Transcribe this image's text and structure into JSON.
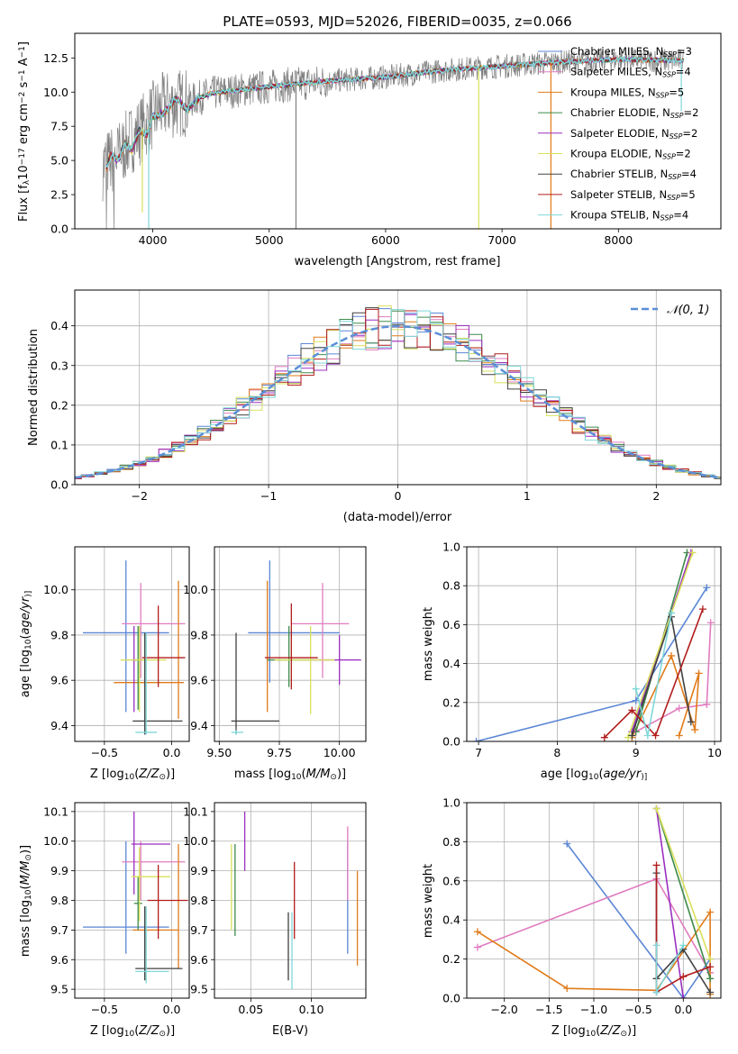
{
  "figure": {
    "title": "PLATE=0593, MJD=52026, FIBERID=0035, z=0.066"
  },
  "colors": {
    "Chabrier MILES": "#5b86d6",
    "Salpeter MILES": "#e07cbf",
    "Kroupa MILES": "#e07b1a",
    "Chabrier ELODIE": "#3e8a4a",
    "Salpeter ELODIE": "#9a2fc0",
    "Kroupa ELODIE": "#d8e05a",
    "Chabrier STELIB": "#404040",
    "Salpeter STELIB": "#b21c1c",
    "Kroupa STELIB": "#7fd7d9",
    "data": "#7f7f7f"
  },
  "chart_data": [
    {
      "id": "spectrum",
      "type": "line",
      "title": "PLATE=0593, MJD=52026, FIBERID=0035, z=0.066",
      "xlabel": "wavelength [Angstrom, rest frame]",
      "ylabel_parts": [
        "Flux [f",
        "λ",
        "10",
        "−17",
        " erg cm",
        "−2",
        " s",
        "−1",
        " A",
        "−1",
        "]"
      ],
      "xlim": [
        3330,
        8880
      ],
      "ylim": [
        0,
        14.3
      ],
      "xticks": [
        4000,
        5000,
        6000,
        7000,
        8000
      ],
      "yticks": [
        0.0,
        2.5,
        5.0,
        7.5,
        10.0,
        12.5
      ],
      "legend_position": "right",
      "legend": [
        {
          "name": "Chabrier MILES",
          "nssp": "3"
        },
        {
          "name": "Salpeter MILES",
          "nssp": "4"
        },
        {
          "name": "Kroupa MILES",
          "nssp": "5"
        },
        {
          "name": "Chabrier ELODIE",
          "nssp": "2"
        },
        {
          "name": "Salpeter ELODIE",
          "nssp": "2"
        },
        {
          "name": "Kroupa ELODIE",
          "nssp": "2"
        },
        {
          "name": "Chabrier STELIB",
          "nssp": "4"
        },
        {
          "name": "Salpeter STELIB",
          "nssp": "5"
        },
        {
          "name": "Kroupa STELIB",
          "nssp": "4"
        }
      ],
      "continuum": [
        [
          3580,
          4.6
        ],
        [
          3700,
          5.3
        ],
        [
          3800,
          6.4
        ],
        [
          3900,
          7.3
        ],
        [
          4000,
          8.3
        ],
        [
          4100,
          9.0
        ],
        [
          4300,
          9.3
        ],
        [
          4500,
          9.9
        ],
        [
          5000,
          10.4
        ],
        [
          5500,
          10.8
        ],
        [
          6000,
          11.1
        ],
        [
          6500,
          11.6
        ],
        [
          7000,
          11.9
        ],
        [
          7500,
          12.2
        ],
        [
          8000,
          12.4
        ],
        [
          8500,
          12.3
        ]
      ],
      "model_start": [
        [
          3600,
          4.4
        ],
        [
          3640,
          5.4
        ],
        [
          3700,
          5.0
        ],
        [
          3760,
          6.2
        ],
        [
          3820,
          5.7
        ],
        [
          3880,
          7.2
        ],
        [
          3950,
          6.9
        ],
        [
          4000,
          8.2
        ],
        [
          4100,
          8.5
        ],
        [
          4200,
          9.5
        ],
        [
          4300,
          8.7
        ],
        [
          4400,
          9.6
        ]
      ],
      "dips": [
        {
          "x": 3910,
          "y": 1.2,
          "color": "Kroupa ELODIE"
        },
        {
          "x": 3965,
          "y": 0.0,
          "color": "Kroupa STELIB"
        },
        {
          "x": 5230,
          "y": 0.0,
          "color": "data"
        },
        {
          "x": 6800,
          "y": 0.0,
          "color": "Kroupa ELODIE"
        },
        {
          "x": 7420,
          "y": 0.0,
          "color": "Kroupa MILES"
        },
        {
          "x": 8540,
          "y": 8.6,
          "color": "Kroupa STELIB"
        }
      ]
    },
    {
      "id": "residuals",
      "type": "step-histogram",
      "xlabel": "(data-model)/error",
      "ylabel": "Normed distribution",
      "xlim": [
        -2.5,
        2.5
      ],
      "ylim": [
        0,
        0.49
      ],
      "xticks": [
        -2,
        -1,
        0,
        1,
        2
      ],
      "yticks": [
        0.0,
        0.1,
        0.2,
        0.3,
        0.4
      ],
      "bin_width": 0.1,
      "reference_curve": "N(0,1)",
      "legend_position": "top-right",
      "legend": [
        "𝒩(0, 1)"
      ],
      "series_order": [
        "Chabrier MILES",
        "Salpeter MILES",
        "Kroupa MILES",
        "Chabrier ELODIE",
        "Salpeter ELODIE",
        "Kroupa ELODIE",
        "Chabrier STELIB",
        "Salpeter STELIB",
        "Kroupa STELIB"
      ]
    },
    {
      "id": "age-vs-Z",
      "type": "errorbar",
      "xlabel_parts": [
        "Z [log",
        "10",
        "(",
        "Z/Z",
        "⊙",
        ")]"
      ],
      "ylabel_parts": [
        "age  [log",
        "10",
        "(",
        "age/yr",
        ")]"
      ],
      "xlim": [
        -0.72,
        0.13
      ],
      "ylim": [
        9.33,
        10.19
      ],
      "xticks": [
        -0.5,
        0.0
      ],
      "yticks": [
        9.4,
        9.6,
        9.8,
        10.0
      ],
      "points": [
        {
          "model": "Chabrier MILES",
          "x": -0.34,
          "y": 9.81,
          "xlo": -0.66,
          "xhi": -0.02,
          "ylo": 9.46,
          "yhi": 10.13
        },
        {
          "model": "Salpeter MILES",
          "x": -0.23,
          "y": 9.85,
          "xlo": -0.37,
          "xhi": 0.1,
          "ylo": 9.61,
          "yhi": 10.03
        },
        {
          "model": "Kroupa MILES",
          "x": 0.05,
          "y": 9.59,
          "xlo": -0.43,
          "xhi": 0.09,
          "ylo": 9.43,
          "yhi": 10.04
        },
        {
          "model": "Chabrier ELODIE",
          "x": -0.25,
          "y": 9.69,
          "xlo": -0.29,
          "xhi": -0.21,
          "ylo": 9.47,
          "yhi": 9.84
        },
        {
          "model": "Salpeter ELODIE",
          "x": -0.28,
          "y": 9.69,
          "xlo": -0.3,
          "xhi": -0.26,
          "ylo": 9.46,
          "yhi": 9.84
        },
        {
          "model": "Kroupa ELODIE",
          "x": -0.24,
          "y": 9.69,
          "xlo": -0.38,
          "xhi": -0.04,
          "ylo": 9.46,
          "yhi": 9.84
        },
        {
          "model": "Chabrier STELIB",
          "x": -0.2,
          "y": 9.42,
          "xlo": -0.29,
          "xhi": 0.08,
          "ylo": 9.36,
          "yhi": 9.81
        },
        {
          "model": "Salpeter STELIB",
          "x": -0.1,
          "y": 9.7,
          "xlo": -0.22,
          "xhi": 0.1,
          "ylo": 9.57,
          "yhi": 9.93
        },
        {
          "model": "Kroupa STELIB",
          "x": -0.19,
          "y": 9.37,
          "xlo": -0.27,
          "xhi": -0.11,
          "ylo": 9.36,
          "yhi": 9.81
        }
      ]
    },
    {
      "id": "age-vs-mass",
      "type": "errorbar",
      "xlabel_parts": [
        "mass [log",
        "10",
        "(",
        "M/M",
        "⊙",
        ")]"
      ],
      "xlim": [
        9.48,
        10.11
      ],
      "ylim": [
        9.33,
        10.19
      ],
      "xticks": [
        9.5,
        9.75,
        10.0
      ],
      "yticks": [
        9.4,
        9.6,
        9.8,
        10.0
      ],
      "points": [
        {
          "model": "Chabrier MILES",
          "x": 9.71,
          "y": 9.81,
          "xlo": 9.62,
          "xhi": 10.0,
          "ylo": 9.59,
          "yhi": 10.13
        },
        {
          "model": "Salpeter MILES",
          "x": 9.93,
          "y": 9.85,
          "xlo": 9.8,
          "xhi": 10.04,
          "ylo": 9.61,
          "yhi": 10.03
        },
        {
          "model": "Kroupa MILES",
          "x": 9.7,
          "y": 9.59,
          "xlo": 9.7,
          "xhi": 9.7,
          "ylo": 9.46,
          "yhi": 10.04
        },
        {
          "model": "Chabrier ELODIE",
          "x": 9.79,
          "y": 9.69,
          "xlo": 9.7,
          "xhi": 9.88,
          "ylo": 9.57,
          "yhi": 9.84
        },
        {
          "model": "Salpeter ELODIE",
          "x": 10.0,
          "y": 9.69,
          "xlo": 9.88,
          "xhi": 10.09,
          "ylo": 9.58,
          "yhi": 9.8
        },
        {
          "model": "Kroupa ELODIE",
          "x": 9.88,
          "y": 9.69,
          "xlo": 9.73,
          "xhi": 9.98,
          "ylo": 9.45,
          "yhi": 9.84
        },
        {
          "model": "Chabrier STELIB",
          "x": 9.57,
          "y": 9.42,
          "xlo": 9.55,
          "xhi": 9.75,
          "ylo": 9.36,
          "yhi": 9.81
        },
        {
          "model": "Salpeter STELIB",
          "x": 9.8,
          "y": 9.7,
          "xlo": 9.69,
          "xhi": 9.91,
          "ylo": 9.56,
          "yhi": 9.94
        },
        {
          "model": "Kroupa STELIB",
          "x": 9.57,
          "y": 9.37,
          "xlo": 9.55,
          "xhi": 9.6,
          "ylo": 9.36,
          "yhi": 9.38
        }
      ]
    },
    {
      "id": "mass-weight-vs-age",
      "type": "line",
      "xlabel_parts": [
        "age  [log",
        "10",
        "(",
        "age/yr",
        ")]"
      ],
      "ylabel": "mass weight",
      "xlim": [
        6.85,
        10.08
      ],
      "ylim": [
        0,
        1.0
      ],
      "xticks": [
        7,
        8,
        9,
        10
      ],
      "yticks": [
        0.0,
        0.2,
        0.4,
        0.6,
        0.8,
        1.0
      ],
      "series": [
        {
          "model": "Chabrier MILES",
          "x": [
            6.97,
            9.0,
            9.9
          ],
          "y": [
            0.0,
            0.21,
            0.79
          ]
        },
        {
          "model": "Salpeter MILES",
          "x": [
            9.0,
            9.55,
            9.9,
            9.95
          ],
          "y": [
            0.05,
            0.17,
            0.19,
            0.61
          ]
        },
        {
          "model": "Kroupa MILES",
          "x": [
            8.95,
            9.45,
            9.75,
            9.8,
            9.55
          ],
          "y": [
            0.02,
            0.44,
            0.06,
            0.35,
            0.03
          ]
        },
        {
          "model": "Chabrier ELODIE",
          "x": [
            9.0,
            9.65
          ],
          "y": [
            0.05,
            0.97
          ]
        },
        {
          "model": "Salpeter ELODIE",
          "x": [
            8.95,
            9.7
          ],
          "y": [
            0.05,
            0.97
          ]
        },
        {
          "model": "Kroupa ELODIE",
          "x": [
            8.9,
            9.72
          ],
          "y": [
            0.02,
            0.97
          ]
        },
        {
          "model": "Chabrier STELIB",
          "x": [
            8.95,
            9.45,
            9.7
          ],
          "y": [
            0.03,
            0.64,
            0.1
          ]
        },
        {
          "model": "Salpeter STELIB",
          "x": [
            8.6,
            8.95,
            9.25,
            9.85
          ],
          "y": [
            0.02,
            0.16,
            0.03,
            0.68
          ]
        },
        {
          "model": "Kroupa STELIB",
          "x": [
            9.0,
            9.15,
            9.45
          ],
          "y": [
            0.27,
            0.03,
            0.66
          ]
        }
      ]
    },
    {
      "id": "mass-vs-Z",
      "type": "errorbar",
      "xlabel_parts": [
        "Z [log",
        "10",
        "(",
        "Z/Z",
        "⊙",
        ")]"
      ],
      "ylabel_parts": [
        "mass [log",
        "10",
        "(",
        "M/M",
        "⊙",
        ")]"
      ],
      "xlim": [
        -0.72,
        0.13
      ],
      "ylim": [
        9.47,
        10.13
      ],
      "xticks": [
        -0.5,
        0.0
      ],
      "yticks": [
        9.5,
        9.6,
        9.7,
        9.8,
        9.9,
        10.0,
        10.1
      ],
      "points": [
        {
          "model": "Chabrier MILES",
          "x": -0.34,
          "y": 9.71,
          "xlo": -0.66,
          "xhi": -0.02,
          "ylo": 9.62,
          "yhi": 10.0
        },
        {
          "model": "Salpeter MILES",
          "x": -0.23,
          "y": 9.93,
          "xlo": -0.37,
          "xhi": 0.1,
          "ylo": 9.8,
          "yhi": 10.0
        },
        {
          "model": "Kroupa MILES",
          "x": 0.05,
          "y": 9.7,
          "xlo": -0.29,
          "xhi": 0.05,
          "ylo": 9.57,
          "yhi": 9.99
        },
        {
          "model": "Chabrier ELODIE",
          "x": -0.25,
          "y": 9.79,
          "xlo": -0.28,
          "xhi": -0.22,
          "ylo": 9.7,
          "yhi": 9.88
        },
        {
          "model": "Salpeter ELODIE",
          "x": -0.28,
          "y": 9.99,
          "xlo": -0.3,
          "xhi": -0.01,
          "ylo": 9.82,
          "yhi": 10.1
        },
        {
          "model": "Kroupa ELODIE",
          "x": -0.24,
          "y": 9.88,
          "xlo": -0.3,
          "xhi": -0.01,
          "ylo": 9.73,
          "yhi": 9.98
        },
        {
          "model": "Chabrier STELIB",
          "x": -0.2,
          "y": 9.57,
          "xlo": -0.27,
          "xhi": 0.08,
          "ylo": 9.53,
          "yhi": 9.78
        },
        {
          "model": "Salpeter STELIB",
          "x": -0.1,
          "y": 9.8,
          "xlo": -0.18,
          "xhi": 0.12,
          "ylo": 9.67,
          "yhi": 9.92
        },
        {
          "model": "Kroupa STELIB",
          "x": -0.19,
          "y": 9.56,
          "xlo": -0.27,
          "xhi": -0.02,
          "ylo": 9.52,
          "yhi": 9.78
        }
      ]
    },
    {
      "id": "mass-vs-EBV",
      "type": "errorbar",
      "xlabel": "E(B-V)",
      "xlim": [
        0.02,
        0.145
      ],
      "ylim": [
        9.47,
        10.13
      ],
      "xticks": [
        0.05,
        0.1
      ],
      "yticks": [
        9.5,
        9.6,
        9.7,
        9.8,
        9.9,
        10.0,
        10.1
      ],
      "points": [
        {
          "model": "Chabrier MILES",
          "x": 0.13,
          "y": 9.71,
          "xlo": 0.13,
          "xhi": 0.13,
          "ylo": 9.62,
          "yhi": 10.0
        },
        {
          "model": "Salpeter MILES",
          "x": 0.13,
          "y": 9.93,
          "xlo": 0.13,
          "xhi": 0.13,
          "ylo": 9.8,
          "yhi": 10.05
        },
        {
          "model": "Kroupa MILES",
          "x": 0.138,
          "y": 9.7,
          "xlo": 0.138,
          "xhi": 0.138,
          "ylo": 9.58,
          "yhi": 9.9
        },
        {
          "model": "Chabrier ELODIE",
          "x": 0.037,
          "y": 9.79,
          "xlo": 0.037,
          "xhi": 0.037,
          "ylo": 9.68,
          "yhi": 9.99
        },
        {
          "model": "Salpeter ELODIE",
          "x": 0.045,
          "y": 9.99,
          "xlo": 0.045,
          "xhi": 0.045,
          "ylo": 9.9,
          "yhi": 10.1
        },
        {
          "model": "Kroupa ELODIE",
          "x": 0.034,
          "y": 9.88,
          "xlo": 0.034,
          "xhi": 0.034,
          "ylo": 9.7,
          "yhi": 9.99
        },
        {
          "model": "Chabrier STELIB",
          "x": 0.081,
          "y": 9.57,
          "xlo": 0.081,
          "xhi": 0.081,
          "ylo": 9.53,
          "yhi": 9.76
        },
        {
          "model": "Salpeter STELIB",
          "x": 0.086,
          "y": 9.8,
          "xlo": 0.086,
          "xhi": 0.086,
          "ylo": 9.67,
          "yhi": 9.93
        },
        {
          "model": "Kroupa STELIB",
          "x": 0.084,
          "y": 9.56,
          "xlo": 0.084,
          "xhi": 0.084,
          "ylo": 9.5,
          "yhi": 9.76
        }
      ]
    },
    {
      "id": "mass-weight-vs-Z",
      "type": "line",
      "xlabel_parts": [
        "Z [log",
        "10",
        "(",
        "Z/Z",
        "⊙",
        ")]"
      ],
      "ylabel": "mass weight",
      "xlim": [
        -2.42,
        0.42
      ],
      "ylim": [
        0,
        1.0
      ],
      "xticks": [
        -2.0,
        -1.5,
        -1.0,
        -0.5,
        0.0
      ],
      "yticks": [
        0.0,
        0.2,
        0.4,
        0.6,
        0.8,
        1.0
      ],
      "series": [
        {
          "model": "Chabrier MILES",
          "x": [
            -1.3,
            0.0,
            0.3
          ],
          "y": [
            0.79,
            0.0,
            0.2
          ]
        },
        {
          "model": "Salpeter MILES",
          "x": [
            -2.3,
            -0.3,
            0.3
          ],
          "y": [
            0.26,
            0.61,
            0.13
          ]
        },
        {
          "model": "Kroupa MILES",
          "x": [
            -2.3,
            -1.3,
            -0.3,
            0.3,
            0.3
          ],
          "y": [
            0.34,
            0.05,
            0.04,
            0.44,
            0.02
          ]
        },
        {
          "model": "Chabrier ELODIE",
          "x": [
            -0.3,
            0.3
          ],
          "y": [
            0.97,
            0.1
          ]
        },
        {
          "model": "Salpeter ELODIE",
          "x": [
            -0.3,
            0.0
          ],
          "y": [
            0.97,
            0.0
          ]
        },
        {
          "model": "Kroupa ELODIE",
          "x": [
            -0.3,
            0.3
          ],
          "y": [
            0.97,
            0.2
          ]
        },
        {
          "model": "Chabrier STELIB",
          "x": [
            -0.3,
            -0.3,
            0.0,
            0.3
          ],
          "y": [
            0.64,
            0.1,
            0.25,
            0.03
          ]
        },
        {
          "model": "Salpeter STELIB",
          "x": [
            -0.3,
            -0.3,
            0.0,
            0.3
          ],
          "y": [
            0.68,
            0.03,
            0.11,
            0.16
          ]
        },
        {
          "model": "Kroupa STELIB",
          "x": [
            -0.3,
            -0.3,
            0.0
          ],
          "y": [
            0.27,
            0.03,
            0.27
          ]
        }
      ]
    }
  ]
}
